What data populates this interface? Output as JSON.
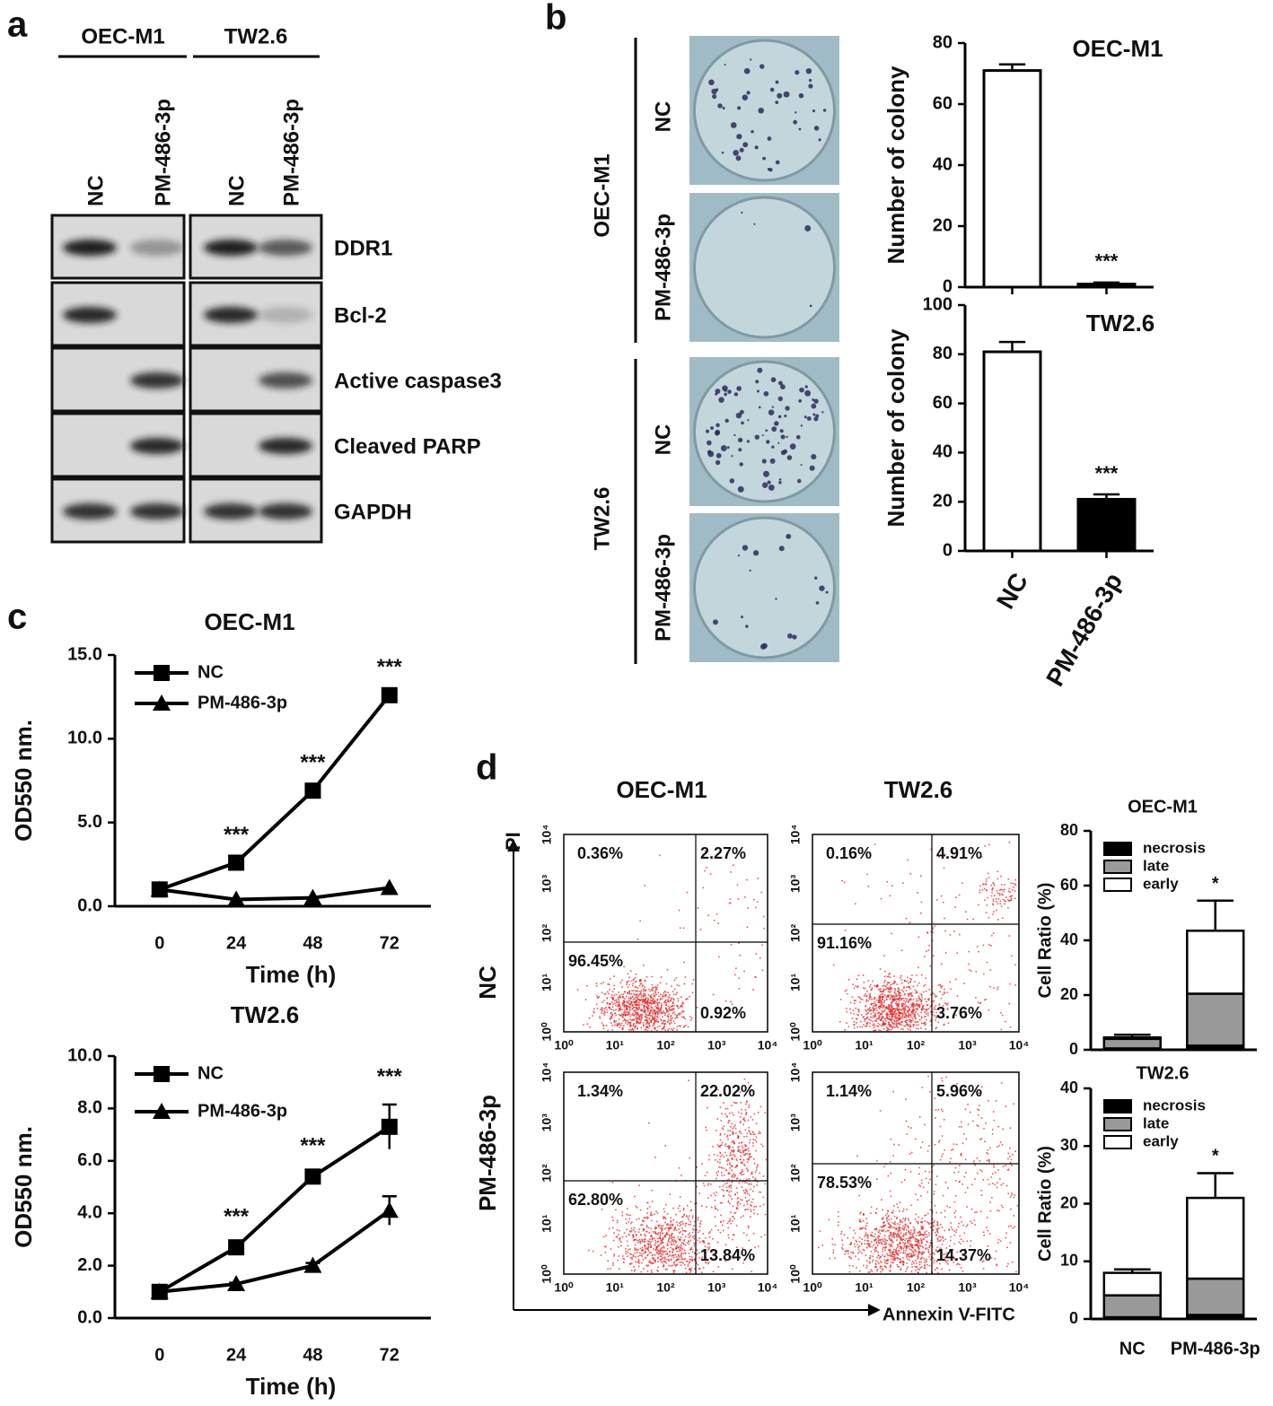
{
  "panel_labels": [
    "a",
    "b",
    "c",
    "d"
  ],
  "western_blot": {
    "cell_lines": [
      "OEC-M1",
      "TW2.6"
    ],
    "lanes": [
      "NC",
      "PM-486-3p",
      "NC",
      "PM-486-3p"
    ],
    "proteins": [
      "DDR1",
      "Bcl-2",
      "Active caspase3",
      "Cleaved PARP",
      "GAPDH"
    ]
  },
  "colony_assay": {
    "cell_lines": [
      "OEC-M1",
      "TW2.6"
    ],
    "conditions": [
      "NC",
      "PM-486-3p"
    ]
  },
  "flow_cytometry": {
    "titles": [
      "OEC-M1",
      "TW2.6"
    ],
    "rows": [
      "NC",
      "PM-486-3p"
    ],
    "y_axis_label": "PI",
    "x_axis_label": "Annexin V-FITC",
    "ticks": [
      "10⁰",
      "10¹",
      "10²",
      "10³",
      "10⁴"
    ],
    "plots": [
      {
        "quadrants": [
          "0.36%",
          "2.27%",
          "96.45%",
          "0.92%"
        ]
      },
      {
        "quadrants": [
          "0.16%",
          "4.91%",
          "91.16%",
          "3.76%"
        ]
      },
      {
        "quadrants": [
          "1.34%",
          "22.02%",
          "62.80%",
          "13.84%"
        ]
      },
      {
        "quadrants": [
          "1.14%",
          "5.96%",
          "78.53%",
          "14.37%"
        ]
      }
    ]
  },
  "chart_data": [
    {
      "type": "bar",
      "title": "OEC-M1",
      "y_label": "Number of colony",
      "categories": [
        null,
        null
      ],
      "values": [
        71,
        1
      ],
      "errors": [
        2,
        0.5
      ],
      "colors": [
        "#ffffff",
        "#000000"
      ],
      "ylim": [
        0,
        80
      ],
      "yticks": [
        0,
        20,
        40,
        60,
        80
      ],
      "significance": [
        null,
        "***"
      ]
    },
    {
      "type": "bar",
      "title": "TW2.6",
      "y_label": "Number of colony",
      "categories": [
        "NC",
        "PM-486-3p"
      ],
      "values": [
        81,
        21
      ],
      "errors": [
        4,
        2
      ],
      "colors": [
        "#ffffff",
        "#000000"
      ],
      "ylim": [
        0,
        100
      ],
      "yticks": [
        0,
        20,
        40,
        60,
        80,
        100
      ],
      "significance": [
        null,
        "***"
      ]
    },
    {
      "type": "line",
      "title": "OEC-M1",
      "x_label": "Time (h)",
      "y_label": "OD550 nm.",
      "x": [
        0,
        24,
        48,
        72
      ],
      "xlim": [
        -14,
        85
      ],
      "xticks": [
        0,
        24,
        48,
        72
      ],
      "ylim": [
        0,
        15
      ],
      "yticks": [
        {
          "value": 0,
          "label": "0.0"
        },
        {
          "value": 5,
          "label": "5.0"
        },
        {
          "value": 10,
          "label": "10.0"
        },
        {
          "value": 15,
          "label": "15.0"
        }
      ],
      "legend": "upper left",
      "series": [
        {
          "name": "NC",
          "color": "#000000",
          "marker": "square",
          "values": [
            1,
            2.6,
            6.9,
            12.6
          ]
        },
        {
          "name": "PM-486-3p",
          "color": "#000000",
          "marker": "triangle",
          "values": [
            1,
            0.4,
            0.5,
            1.1
          ]
        }
      ],
      "significance": [
        null,
        "***",
        "***",
        "***"
      ]
    },
    {
      "type": "line",
      "title": "TW2.6",
      "x_label": "Time (h)",
      "y_label": "OD550 nm.",
      "x": [
        0,
        24,
        48,
        72
      ],
      "xlim": [
        -14,
        85
      ],
      "xticks": [
        0,
        24,
        48,
        72
      ],
      "ylim": [
        0,
        10
      ],
      "yticks": [
        {
          "value": 0,
          "label": "0.0"
        },
        {
          "value": 2,
          "label": "2.0"
        },
        {
          "value": 4,
          "label": "4.0"
        },
        {
          "value": 6,
          "label": "6.0"
        },
        {
          "value": 8,
          "label": "8.0"
        },
        {
          "value": 10,
          "label": "10.0"
        }
      ],
      "legend": "upper left",
      "series": [
        {
          "name": "NC",
          "color": "#000000",
          "marker": "square",
          "values": [
            1,
            2.7,
            5.4,
            7.3
          ],
          "errors": [
            null,
            0.1,
            0.1,
            0.85
          ]
        },
        {
          "name": "PM-486-3p",
          "color": "#000000",
          "marker": "triangle",
          "values": [
            1,
            1.3,
            2,
            4.1
          ],
          "errors": [
            null,
            0.05,
            0.1,
            0.55
          ]
        }
      ],
      "significance": [
        null,
        "***",
        "***",
        "***"
      ]
    },
    {
      "type": "stacked_bar",
      "title": "OEC-M1",
      "y_label": "Cell Ratio (%)",
      "categories": [
        null,
        null
      ],
      "ylim": [
        0,
        80
      ],
      "yticks": [
        0,
        20,
        40,
        60,
        80
      ],
      "legend": "upper left",
      "series": [
        {
          "name": "necrosis",
          "color": "#000000",
          "values": [
            0.5,
            1.5
          ],
          "errors": [
            null,
            null
          ]
        },
        {
          "name": "late",
          "color": "#999999",
          "values": [
            3.5,
            19
          ],
          "errors": [
            null,
            8
          ]
        },
        {
          "name": "early",
          "color": "#ffffff",
          "values": [
            0.5,
            23
          ],
          "errors": [
            1,
            11
          ]
        }
      ],
      "significance": [
        null,
        "*"
      ]
    },
    {
      "type": "stacked_bar",
      "title": "TW2.6",
      "y_label": "Cell Ratio (%)",
      "categories": [
        "NC",
        "PM-486-3p"
      ],
      "ylim": [
        0,
        40
      ],
      "yticks": [
        0,
        10,
        20,
        30,
        40
      ],
      "legend": "upper left",
      "series": [
        {
          "name": "necrosis",
          "color": "#000000",
          "values": [
            0.3,
            0.7
          ],
          "errors": [
            null,
            null
          ]
        },
        {
          "name": "late",
          "color": "#999999",
          "values": [
            3.8,
            6.3
          ],
          "errors": [
            1.5,
            1
          ]
        },
        {
          "name": "early",
          "color": "#ffffff",
          "values": [
            3.9,
            14
          ],
          "errors": [
            0.6,
            4.3
          ]
        }
      ],
      "significance": [
        null,
        "*"
      ]
    }
  ]
}
